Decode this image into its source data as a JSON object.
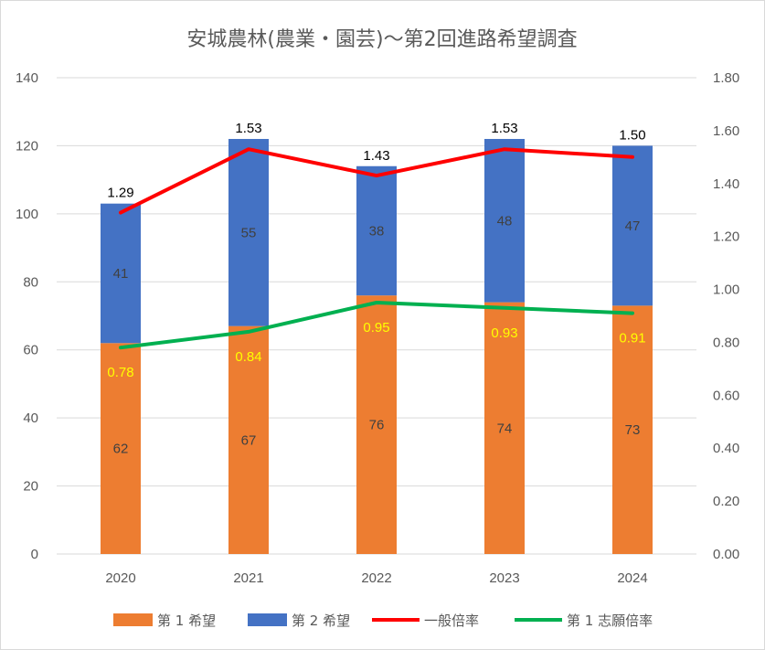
{
  "chart_data": {
    "type": "bar",
    "title": "安城農林(農業・園芸)〜第2回進路希望調査",
    "categories": [
      "2020",
      "2021",
      "2022",
      "2023",
      "2024"
    ],
    "series": [
      {
        "name": "第 1 希望",
        "kind": "stacked-bar",
        "axis": "left",
        "color": "#ed7d31",
        "values": [
          62,
          67,
          76,
          74,
          73
        ],
        "labels": [
          "62",
          "67",
          "76",
          "74",
          "73"
        ]
      },
      {
        "name": "第 2 希望",
        "kind": "stacked-bar",
        "axis": "left",
        "color": "#4472c4",
        "values": [
          41,
          55,
          38,
          48,
          47
        ],
        "labels": [
          "41",
          "55",
          "38",
          "48",
          "47"
        ]
      },
      {
        "name": "一般倍率",
        "kind": "line",
        "axis": "right",
        "color": "#ff0000",
        "values": [
          1.29,
          1.53,
          1.43,
          1.53,
          1.5
        ],
        "labels": [
          "1.29",
          "1.53",
          "1.43",
          "1.53",
          "1.50"
        ]
      },
      {
        "name": "第 1 志願倍率",
        "kind": "line",
        "axis": "right",
        "color": "#00b050",
        "values": [
          0.78,
          0.84,
          0.95,
          0.93,
          0.91
        ],
        "labels": [
          "0.78",
          "0.84",
          "0.95",
          "0.93",
          "0.91"
        ]
      }
    ],
    "ylim": [
      0,
      140
    ],
    "yticks": [
      "0",
      "20",
      "40",
      "60",
      "80",
      "100",
      "120",
      "140"
    ],
    "y2lim": [
      0,
      1.8
    ],
    "y2ticks": [
      "0.00",
      "0.20",
      "0.40",
      "0.60",
      "0.80",
      "1.00",
      "1.20",
      "1.40",
      "1.60",
      "1.80"
    ],
    "xlabel": "",
    "ylabel": "",
    "grid": true,
    "legend": "bottom"
  }
}
